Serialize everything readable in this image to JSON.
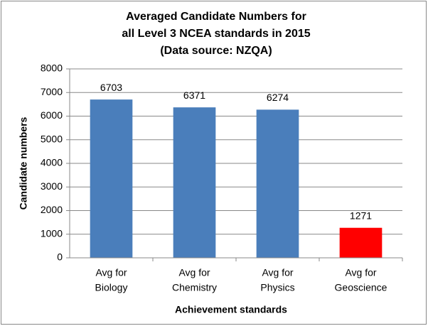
{
  "chart_data": {
    "type": "bar",
    "title": [
      "Averaged Candidate Numbers for",
      "all Level 3 NCEA standards   in 2015",
      "(Data source: NZQA)"
    ],
    "categories": [
      [
        "Avg for",
        "Biology"
      ],
      [
        "Avg for",
        "Chemistry"
      ],
      [
        "Avg for",
        "Physics"
      ],
      [
        "Avg for",
        "Geoscience"
      ]
    ],
    "values": [
      6703,
      6371,
      6274,
      1271
    ],
    "colors": [
      "#4a7ebb",
      "#4a7ebb",
      "#4a7ebb",
      "#ff0000"
    ],
    "ylim": [
      0,
      8000
    ],
    "yticks": [
      0,
      1000,
      2000,
      3000,
      4000,
      5000,
      6000,
      7000,
      8000
    ],
    "grid": true,
    "ylabel": "Candidate numbers",
    "xlabel": "Achievement standards"
  }
}
